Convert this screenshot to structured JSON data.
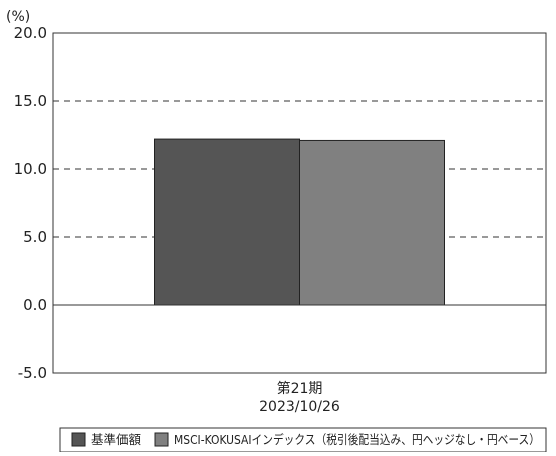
{
  "chart_data": {
    "type": "bar",
    "unit_label": "(%)",
    "categories": [
      "第21期"
    ],
    "category_sublabels": [
      "2023/10/26"
    ],
    "series": [
      {
        "name": "基準価額",
        "values": [
          12.2
        ],
        "color": "#555555"
      },
      {
        "name": "MSCI-KOKUSAIインデックス（税引後配当込み、円ヘッジなし・円ベース）",
        "values": [
          12.1
        ],
        "color": "#808080"
      }
    ],
    "ylim": [
      -5.0,
      20.0
    ],
    "yticks": [
      20.0,
      15.0,
      10.0,
      5.0,
      0.0,
      -5.0
    ],
    "ytick_labels": [
      "20.0",
      "15.0",
      "10.0",
      "5.0",
      "0.0",
      "-5.0"
    ],
    "grid": "dashed horizontal",
    "legend_position": "bottom"
  }
}
